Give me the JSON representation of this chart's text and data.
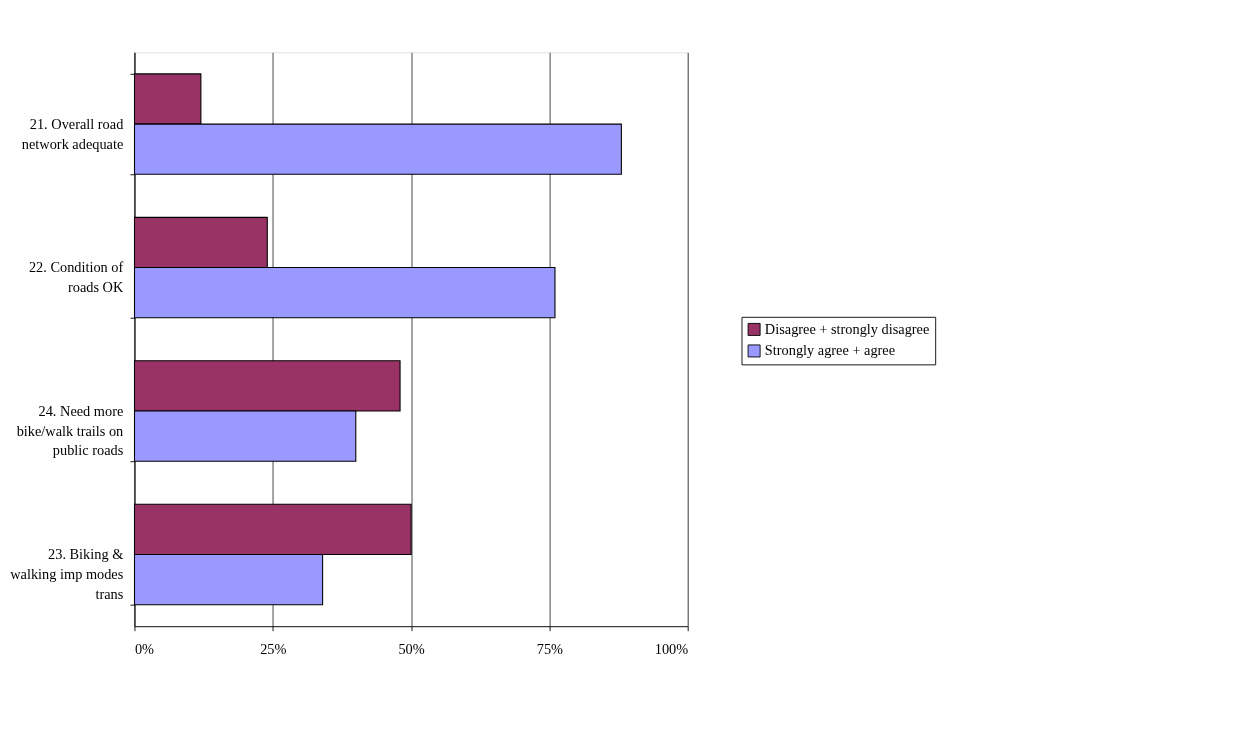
{
  "chart_data": {
    "type": "bar",
    "orientation": "horizontal",
    "categories": [
      "21. Overall road network adequate",
      "22. Condition of roads OK",
      "24. Need more bike/walk trails on public roads",
      "23. Biking & walking imp modes trans"
    ],
    "series": [
      {
        "name": "Disagree + strongly disagree",
        "color": "#993366",
        "values": [
          12,
          24,
          48,
          50
        ]
      },
      {
        "name": "Strongly agree + agree",
        "color": "#9999ff",
        "values": [
          88,
          76,
          40,
          34
        ]
      }
    ],
    "xlim": [
      0,
      100
    ],
    "xticks": [
      {
        "value": 0,
        "label": "0%"
      },
      {
        "value": 25,
        "label": "25%"
      },
      {
        "value": 50,
        "label": "50%"
      },
      {
        "value": 75,
        "label": "75%"
      },
      {
        "value": 100,
        "label": "100%"
      }
    ],
    "grid": "x",
    "legend": "right"
  }
}
